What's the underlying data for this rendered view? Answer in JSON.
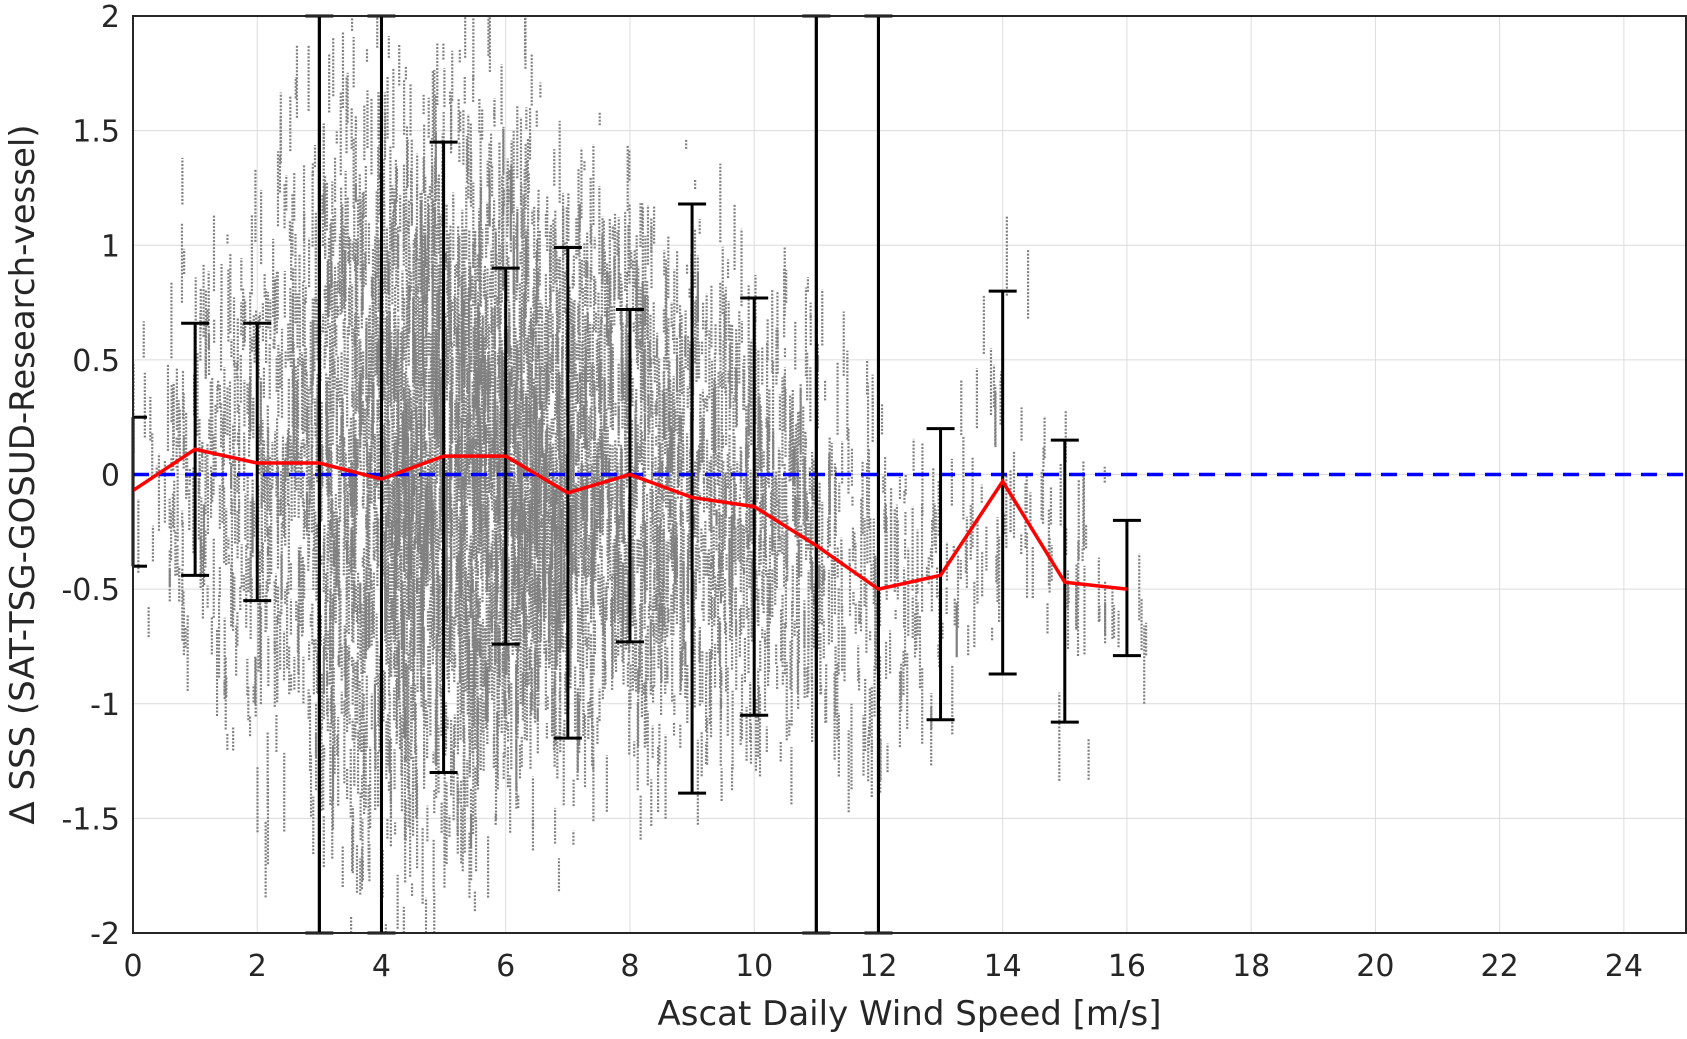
{
  "chart_data": {
    "type": "scatter",
    "title": "",
    "xlabel": "Ascat Daily Wind Speed [m/s]",
    "ylabel": "Δ SSS (SAT-TSG-GOSUD-Research-vessel)",
    "xlim": [
      0,
      25
    ],
    "ylim": [
      -2,
      2
    ],
    "xticks": [
      0,
      2,
      4,
      6,
      8,
      10,
      12,
      14,
      16,
      18,
      20,
      22,
      24
    ],
    "yticks": [
      -2,
      -1.5,
      -1,
      -0.5,
      0,
      0.5,
      1,
      1.5,
      2
    ],
    "xtick_labels": [
      "0",
      "2",
      "4",
      "6",
      "8",
      "10",
      "12",
      "14",
      "16",
      "18",
      "20",
      "22",
      "24"
    ],
    "ytick_labels": [
      "-2",
      "-1.5",
      "-1",
      "-0.5",
      "0",
      "0.5",
      "1",
      "1.5",
      "2"
    ],
    "grid": true,
    "reference_line": {
      "y": 0,
      "style": "dashed",
      "color": "#0000ff"
    },
    "vertical_lines": [
      3,
      4,
      11,
      12
    ],
    "mean_line": {
      "color": "#ff0000",
      "x": [
        0,
        1,
        2,
        3,
        4,
        5,
        6,
        7,
        8,
        9,
        10,
        11,
        12,
        13,
        14,
        15,
        16
      ],
      "y": [
        -0.07,
        0.11,
        0.05,
        0.05,
        -0.02,
        0.08,
        0.08,
        -0.08,
        0.0,
        -0.1,
        -0.14,
        -0.31,
        -0.5,
        -0.44,
        -0.03,
        -0.47,
        -0.5
      ]
    },
    "error_bars": {
      "color": "#000000",
      "x": [
        0,
        1,
        2,
        3,
        4,
        5,
        6,
        7,
        8,
        9,
        10,
        11,
        12,
        13,
        14,
        15,
        16
      ],
      "lower": [
        -0.4,
        -0.44,
        -0.55,
        -2.0,
        -2.0,
        -1.3,
        -0.74,
        -1.15,
        -0.73,
        -1.39,
        -1.05,
        -2.0,
        -2.0,
        -1.07,
        -0.87,
        -1.08,
        -0.79
      ],
      "upper": [
        0.25,
        0.66,
        0.66,
        2.0,
        2.0,
        1.45,
        0.9,
        0.99,
        0.72,
        1.18,
        0.77,
        2.0,
        2.0,
        0.2,
        0.8,
        0.15,
        -0.2
      ]
    },
    "scatter_series": {
      "color": "#808080",
      "description_counts": "dense vertical streaks of samples per wind-speed value",
      "centers": [
        0.5,
        1,
        1.5,
        2,
        2.5,
        3,
        3.5,
        4,
        4.5,
        5,
        5.5,
        6,
        6.5,
        7,
        7.5,
        8,
        8.5,
        9,
        9.5,
        10,
        10.5,
        11,
        11.5,
        12,
        12.5,
        13,
        13.5,
        14,
        14.5,
        15,
        15.5,
        16
      ],
      "spread": [
        0.35,
        0.5,
        0.55,
        0.6,
        0.7,
        0.75,
        0.8,
        0.85,
        0.8,
        0.8,
        0.75,
        0.7,
        0.65,
        0.6,
        0.6,
        0.6,
        0.55,
        0.55,
        0.55,
        0.5,
        0.45,
        0.45,
        0.4,
        0.35,
        0.35,
        0.35,
        0.3,
        0.4,
        0.3,
        0.35,
        0.3,
        0.2
      ],
      "mean": [
        -0.1,
        0.05,
        0.05,
        0.05,
        0.05,
        0.05,
        0.05,
        0.02,
        0.05,
        0.08,
        0.08,
        0.08,
        0.0,
        -0.05,
        0.0,
        0.0,
        -0.1,
        -0.1,
        -0.1,
        -0.14,
        -0.2,
        -0.3,
        -0.4,
        -0.5,
        -0.45,
        -0.44,
        -0.3,
        0.3,
        -0.2,
        -0.4,
        -0.45,
        -0.5
      ],
      "density": [
        6,
        14,
        18,
        22,
        30,
        40,
        55,
        70,
        80,
        90,
        90,
        85,
        75,
        65,
        55,
        45,
        40,
        35,
        30,
        28,
        22,
        18,
        12,
        10,
        7,
        6,
        4,
        4,
        3,
        4,
        2,
        2
      ]
    }
  }
}
